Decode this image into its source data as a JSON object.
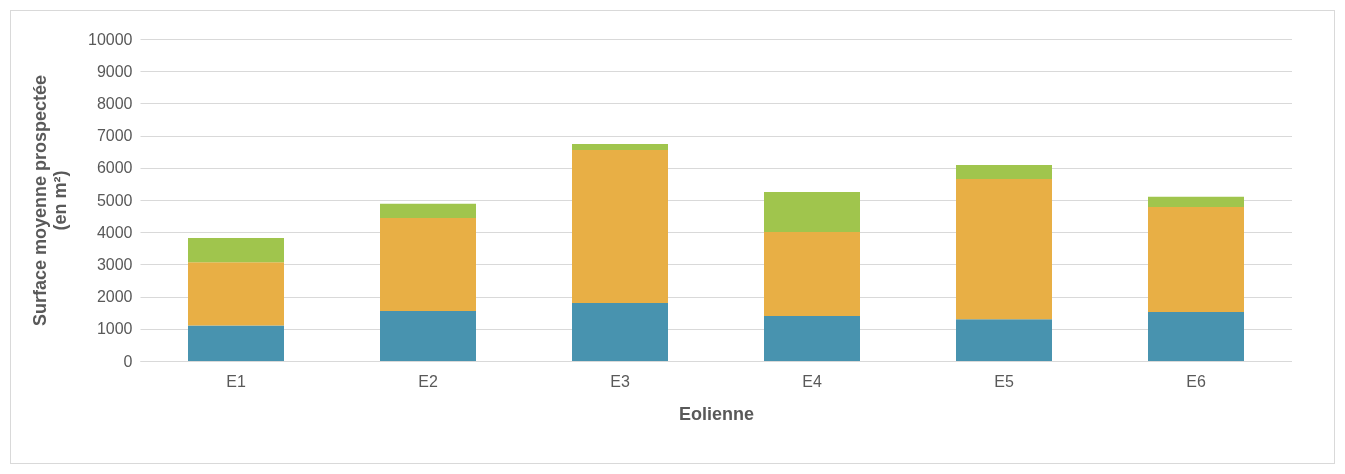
{
  "chart_data": {
    "type": "bar",
    "stacked": true,
    "xlabel": "Eolienne",
    "ylabel": "Surface moyenne prospectée (en m²)",
    "categories": [
      "E1",
      "E2",
      "E3",
      "E4",
      "E5",
      "E6"
    ],
    "series": [
      {
        "color": "#4893af",
        "values": [
          1100,
          1550,
          1800,
          1400,
          1300,
          1520
        ]
      },
      {
        "color": "#e8af45",
        "values": [
          1970,
          2890,
          4750,
          2610,
          4350,
          3260
        ]
      },
      {
        "color": "#a0c54d",
        "values": [
          750,
          440,
          190,
          1240,
          440,
          320
        ]
      }
    ],
    "ylim": [
      0,
      10000
    ],
    "yticks": [
      0,
      1000,
      2000,
      3000,
      4000,
      5000,
      6000,
      7000,
      8000,
      9000,
      10000
    ],
    "grid": "y"
  }
}
